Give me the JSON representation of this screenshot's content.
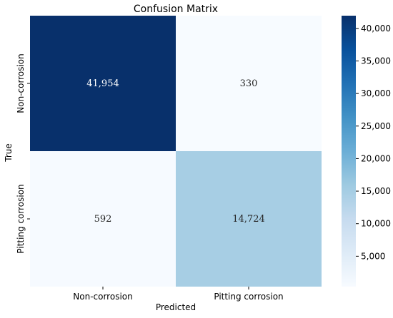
{
  "chart_data": {
    "type": "heatmap",
    "title": "Confusion Matrix",
    "xlabel": "Predicted",
    "ylabel": "True",
    "x_categories": [
      "Non-corrosion",
      "Pitting corrosion"
    ],
    "y_categories": [
      "Non-corrosion",
      "Pitting corrosion"
    ],
    "values": [
      [
        41954,
        330
      ],
      [
        592,
        14724
      ]
    ],
    "cell_labels": [
      [
        "41,954",
        "330"
      ],
      [
        "592",
        "14,724"
      ]
    ],
    "colormap": "Blues",
    "colors": {
      "low": "#f7fbff",
      "mid": "#6baed6",
      "high": "#08306b"
    },
    "colorbar": {
      "range": [
        330,
        41954
      ],
      "ticks": [
        5000,
        10000,
        15000,
        20000,
        25000,
        30000,
        35000,
        40000
      ],
      "tick_labels": [
        "5,000",
        "10,000",
        "15,000",
        "20,000",
        "25,000",
        "30,000",
        "35,000",
        "40,000"
      ]
    }
  }
}
